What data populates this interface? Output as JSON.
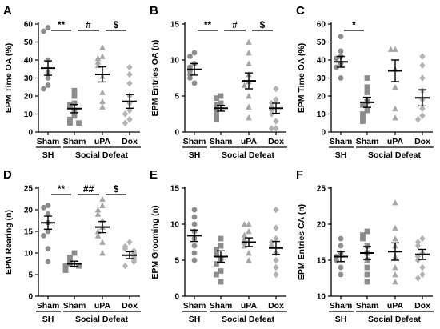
{
  "figure": {
    "colors": {
      "sham_sh": "#8c8c8c",
      "sham_defeat": "#8c8c8c",
      "upa": "#a6a6a6",
      "dox": "#b3b3b3",
      "axis": "#000000"
    },
    "group_labels": [
      "SH",
      "Social Defeat"
    ]
  },
  "chart_data": [
    {
      "id": "A",
      "type": "scatter",
      "ylabel": "EPM Time OA (%)",
      "ylim": [
        0,
        60
      ],
      "yticks": [
        0,
        10,
        20,
        30,
        40,
        50,
        60
      ],
      "ytick_labels": [
        "0",
        "10",
        "20",
        "30",
        "40",
        "50",
        "60"
      ],
      "categories": [
        "Sham",
        "Sham",
        "uPA",
        "Dox"
      ],
      "markers": [
        "circle",
        "square",
        "triangle",
        "diamond"
      ],
      "means": [
        35.5,
        13,
        32,
        17
      ],
      "sem": [
        4,
        2.3,
        4.2,
        3.8
      ],
      "points": [
        [
          58,
          56,
          40,
          33,
          30,
          26,
          24
        ],
        [
          23,
          20,
          16,
          15,
          12,
          9,
          7,
          5,
          5
        ],
        [
          47,
          42,
          41,
          39,
          37,
          31,
          22,
          17,
          14
        ],
        [
          36,
          32,
          27,
          20,
          16,
          12,
          10,
          7,
          5
        ]
      ],
      "significance": [
        {
          "label": "**",
          "from": 0,
          "to": 1
        },
        {
          "label": "#",
          "from": 1,
          "to": 2
        },
        {
          "label": "$",
          "from": 2,
          "to": 3
        }
      ]
    },
    {
      "id": "B",
      "type": "scatter",
      "ylabel": "EPM Entries OA (n)",
      "ylim": [
        0,
        15
      ],
      "yticks": [
        0,
        5,
        10,
        15
      ],
      "ytick_labels": [
        "0",
        "5",
        "10",
        "15"
      ],
      "categories": [
        "Sham",
        "Sham",
        "uPA",
        "Dox"
      ],
      "markers": [
        "circle",
        "square",
        "triangle",
        "diamond"
      ],
      "means": [
        8.7,
        3.3,
        7.1,
        3.3
      ],
      "sem": [
        0.8,
        0.4,
        1.1,
        0.7
      ],
      "points": [
        [
          11,
          10.5,
          9.5,
          9,
          8.5,
          8,
          7.5,
          6.8
        ],
        [
          5,
          4.7,
          4,
          3.8,
          3.3,
          3,
          2.5,
          2,
          1.8
        ],
        [
          12.5,
          11,
          9.5,
          8,
          7,
          6.5,
          5,
          3.5,
          2
        ],
        [
          6,
          4.5,
          4,
          3.5,
          3,
          2.5,
          1.5,
          0.5,
          0.5
        ]
      ],
      "significance": [
        {
          "label": "**",
          "from": 0,
          "to": 1
        },
        {
          "label": "#",
          "from": 1,
          "to": 2
        },
        {
          "label": "$",
          "from": 2,
          "to": 3
        }
      ]
    },
    {
      "id": "C",
      "type": "scatter",
      "ylabel": "EPM Time OA (%)",
      "ylim": [
        0,
        60
      ],
      "yticks": [
        0,
        10,
        20,
        30,
        40,
        50,
        60
      ],
      "ytick_labels": [
        "0",
        "10",
        "20",
        "30",
        "40",
        "50",
        "60"
      ],
      "categories": [
        "Sham",
        "Sham",
        "uPA",
        "Dox"
      ],
      "markers": [
        "circle",
        "square",
        "triangle",
        "diamond"
      ],
      "means": [
        39,
        16.5,
        34,
        19
      ],
      "sem": [
        3,
        2.8,
        6,
        4.5
      ],
      "points": [
        [
          53,
          45,
          42,
          41,
          38,
          36,
          30
        ],
        [
          30,
          25,
          22,
          17,
          15,
          12,
          10,
          8,
          6
        ],
        [
          46,
          46,
          35,
          25,
          13,
          8
        ],
        [
          42,
          37,
          30,
          23,
          18,
          13,
          9,
          7
        ]
      ],
      "significance": [
        {
          "label": "*",
          "from": 0,
          "to": 1
        }
      ]
    },
    {
      "id": "D",
      "type": "scatter",
      "ylabel": "EPM Rearing (n)",
      "ylim": [
        0,
        25
      ],
      "yticks": [
        0,
        5,
        10,
        15,
        20,
        25
      ],
      "ytick_labels": [
        "0",
        "5",
        "10",
        "15",
        "20",
        "25"
      ],
      "categories": [
        "Sham",
        "Sham",
        "uPA",
        "Dox"
      ],
      "markers": [
        "circle",
        "square",
        "triangle",
        "diamond"
      ],
      "means": [
        17,
        7.5,
        16,
        9.5
      ],
      "sem": [
        1.5,
        0.6,
        1.3,
        0.8
      ],
      "points": [
        [
          21,
          20.5,
          19,
          17,
          15,
          14,
          11,
          8
        ],
        [
          10,
          9,
          8,
          7.5,
          7,
          7,
          6.5,
          6
        ],
        [
          22.5,
          21,
          20,
          19,
          17.5,
          16,
          15,
          14,
          12.5,
          10
        ],
        [
          12.5,
          11.5,
          11,
          10.5,
          10,
          9.5,
          9,
          8.5,
          8,
          7
        ]
      ],
      "significance": [
        {
          "label": "**",
          "from": 0,
          "to": 1
        },
        {
          "label": "##",
          "from": 1,
          "to": 2
        },
        {
          "label": "$",
          "from": 2,
          "to": 3
        }
      ]
    },
    {
      "id": "E",
      "type": "scatter",
      "ylabel": "EPM Grooming (n)",
      "ylim": [
        0,
        15
      ],
      "yticks": [
        0,
        5,
        10,
        15
      ],
      "ytick_labels": [
        "0",
        "5",
        "10",
        "15"
      ],
      "categories": [
        "Sham",
        "Sham",
        "uPA",
        "Dox"
      ],
      "markers": [
        "circle",
        "square",
        "triangle",
        "diamond"
      ],
      "means": [
        8.4,
        5.5,
        7.5,
        6.7
      ],
      "sem": [
        0.8,
        0.8,
        0.6,
        0.9
      ],
      "points": [
        [
          12,
          11,
          10,
          9,
          8,
          7,
          6,
          5
        ],
        [
          8,
          7,
          6.5,
          6,
          5,
          4.5,
          3.5,
          3,
          2
        ],
        [
          10,
          10,
          9,
          8.5,
          8,
          7.5,
          7,
          6,
          5
        ],
        [
          12,
          9.5,
          8,
          7.5,
          7,
          6,
          5,
          4,
          3
        ]
      ],
      "significance": []
    },
    {
      "id": "F",
      "type": "scatter",
      "ylabel": "EPM Entries CA (n)",
      "ylim": [
        10,
        25
      ],
      "yticks": [
        10,
        15,
        20,
        25
      ],
      "ytick_labels": [
        "10",
        "15",
        "20",
        "25"
      ],
      "categories": [
        "Sham",
        "Sham",
        "uPA",
        "Dox"
      ],
      "markers": [
        "circle",
        "square",
        "triangle",
        "diamond"
      ],
      "means": [
        15.5,
        16,
        16.2,
        15.8
      ],
      "sem": [
        0.7,
        0.9,
        1.2,
        0.7
      ],
      "points": [
        [
          18,
          17,
          16,
          15.5,
          15,
          14,
          13
        ],
        [
          19,
          18.5,
          18,
          17,
          16,
          15,
          14,
          13,
          12
        ],
        [
          23,
          19.5,
          18,
          17,
          15.5,
          14,
          13,
          12
        ],
        [
          18,
          17.5,
          17,
          16,
          15.5,
          15,
          14,
          13,
          12.5
        ]
      ],
      "significance": []
    }
  ]
}
